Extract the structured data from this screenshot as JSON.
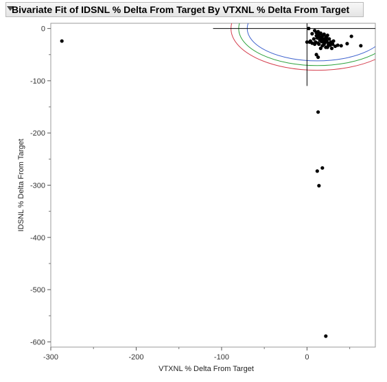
{
  "title": "Bivariate Fit of IDSNL % Delta From Target By VTXNL % Delta From Target",
  "colors": {
    "ellipse_inner": "#3a5fcd",
    "ellipse_mid": "#2aa13a",
    "ellipse_outer": "#d43b4b",
    "points": "#000000"
  },
  "chart_data": {
    "type": "scatter",
    "title": "Bivariate Fit of IDSNL % Delta From Target By VTXNL % Delta From Target",
    "xlabel": "VTXNL % Delta From Target",
    "ylabel": "IDSNL % Delta From Target",
    "xlim": [
      -300,
      80
    ],
    "ylim": [
      -610,
      10
    ],
    "x_ticks": [
      "-300",
      "-200",
      "-100",
      "0"
    ],
    "y_ticks": [
      "0",
      "-100",
      "-200",
      "-300",
      "-400",
      "-500",
      "-600"
    ],
    "points": [
      [
        -287,
        -24
      ],
      [
        2,
        0
      ],
      [
        6,
        -10
      ],
      [
        9,
        -4
      ],
      [
        11,
        -8
      ],
      [
        13,
        -6
      ],
      [
        14,
        -12
      ],
      [
        16,
        -9
      ],
      [
        18,
        -14
      ],
      [
        20,
        -11
      ],
      [
        22,
        -16
      ],
      [
        24,
        -13
      ],
      [
        26,
        -20
      ],
      [
        12,
        -18
      ],
      [
        15,
        -22
      ],
      [
        17,
        -25
      ],
      [
        19,
        -20
      ],
      [
        21,
        -27
      ],
      [
        23,
        -24
      ],
      [
        25,
        -28
      ],
      [
        27,
        -32
      ],
      [
        10,
        -26
      ],
      [
        8,
        -20
      ],
      [
        6,
        -28
      ],
      [
        4,
        -24
      ],
      [
        14,
        -30
      ],
      [
        18,
        -33
      ],
      [
        20,
        -30
      ],
      [
        28,
        -26
      ],
      [
        30,
        -30
      ],
      [
        31,
        -24
      ],
      [
        33,
        -34
      ],
      [
        29,
        -38
      ],
      [
        22,
        -36
      ],
      [
        16,
        -38
      ],
      [
        13,
        -28
      ],
      [
        11,
        -14
      ],
      [
        9,
        -30
      ],
      [
        15,
        -16
      ],
      [
        17,
        -20
      ],
      [
        19,
        -26
      ],
      [
        21,
        -22
      ],
      [
        23,
        -18
      ],
      [
        25,
        -32
      ],
      [
        24,
        -36
      ],
      [
        36,
        -32
      ],
      [
        40,
        -33
      ],
      [
        47,
        -29
      ],
      [
        52,
        -15
      ],
      [
        63,
        -33
      ],
      [
        0,
        -26
      ],
      [
        3,
        -26
      ],
      [
        11,
        -50
      ],
      [
        13,
        -55
      ],
      [
        13,
        -160
      ],
      [
        18,
        -267
      ],
      [
        12,
        -273
      ],
      [
        14,
        -301
      ],
      [
        22,
        -589
      ]
    ],
    "reference_lines": {
      "x": 0,
      "y": 0
    },
    "ellipses": [
      {
        "name": "inner",
        "cx": 12,
        "cy": 0,
        "rx": 82,
        "ry": 62
      },
      {
        "name": "mid",
        "cx": 12,
        "cy": 0,
        "rx": 92,
        "ry": 71
      },
      {
        "name": "outer",
        "cx": 12,
        "cy": 0,
        "rx": 101,
        "ry": 80
      }
    ],
    "grid": false
  }
}
